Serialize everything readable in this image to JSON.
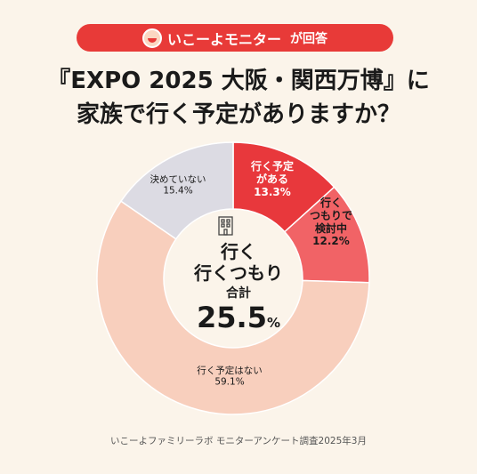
{
  "header": {
    "brand": "いこーよモニター",
    "suffix": "が回答",
    "mascot_icon": "mascot-face-icon",
    "accent_color": "#e83a38"
  },
  "title": {
    "line1": "『EXPO 2025 大阪・関西万博』に",
    "line2": "家族で行く予定がありますか？"
  },
  "center": {
    "icon": "building-icon",
    "line1": "行く",
    "line2": "行くつもり",
    "line3": "合計",
    "value": "25.5",
    "unit": "%"
  },
  "chart_data": {
    "type": "pie",
    "donut": true,
    "slices": [
      {
        "label_lines": [
          "行く予定",
          "がある"
        ],
        "value": 13.3,
        "value_text": "13.3%",
        "color": "#e8383c",
        "text_color": "#ffffff"
      },
      {
        "label_lines": [
          "行く",
          "つもりで",
          "検討中"
        ],
        "value": 12.2,
        "value_text": "12.2%",
        "color": "#f16366",
        "text_color": "#1a1a1a"
      },
      {
        "label_lines": [
          "行く予定はない"
        ],
        "value": 59.1,
        "value_text": "59.1%",
        "color": "#f8cfbd",
        "text_color": "#1a1a1a"
      },
      {
        "label_lines": [
          "決めていない"
        ],
        "value": 15.4,
        "value_text": "15.4%",
        "color": "#dcdbe3",
        "text_color": "#1a1a1a"
      }
    ]
  },
  "footer": {
    "source": "いこーよファミリーラボ モニターアンケート調査2025年3月"
  }
}
